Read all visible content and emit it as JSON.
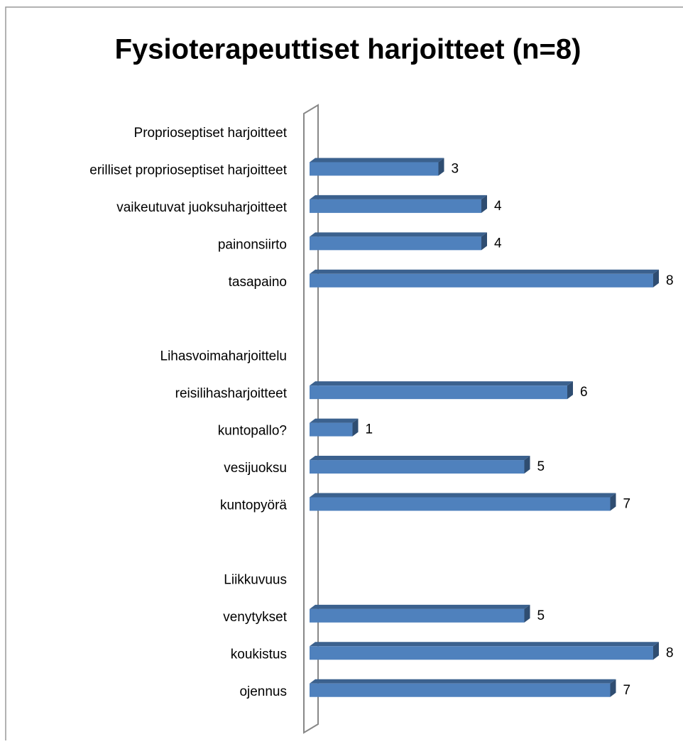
{
  "chart_data": {
    "type": "bar",
    "orientation": "horizontal",
    "title": "Fysioterapeuttiset harjoitteet (n=8)",
    "categories": [
      "Proprioseptiset harjoitteet",
      "erilliset proprioseptiset harjoitteet",
      "vaikeutuvat juoksuharjoitteet",
      "painonsiirto",
      "tasapaino",
      null,
      "Lihasvoimaharjoittelu",
      "reisilihasharjoitteet",
      "kuntopallo?",
      "vesijuoksu",
      "kuntopyörä",
      null,
      "Liikkuvuus",
      "venytykset",
      "koukistus",
      "ojennus"
    ],
    "values": [
      null,
      3,
      4,
      4,
      8,
      null,
      null,
      6,
      1,
      5,
      7,
      null,
      null,
      5,
      8,
      7
    ],
    "color": "#4f81bd"
  }
}
